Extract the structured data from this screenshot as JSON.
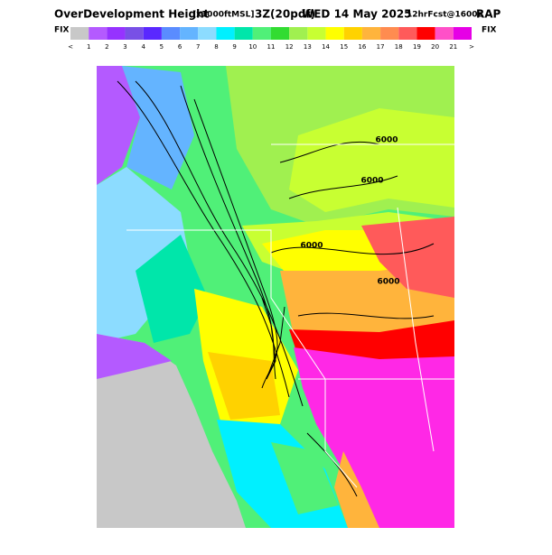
{
  "header": {
    "title": "OverDevelopment Height",
    "units": "[x1000ftMSL]",
    "level": "3Z(20pdf)",
    "date": "WED 14 May 2025",
    "forecast": "12hrFcst@1600z",
    "model": "RAP"
  },
  "colorbar": {
    "left_label": "FIX",
    "right_label": "FIX",
    "labels": [
      "<",
      1,
      2,
      3,
      4,
      5,
      6,
      7,
      8,
      9,
      10,
      11,
      12,
      13,
      14,
      15,
      16,
      17,
      18,
      19,
      20,
      21,
      ">"
    ],
    "colors": [
      "#c8c8c8",
      "#b45aff",
      "#9632ff",
      "#7850e6",
      "#5a28ff",
      "#5a8cff",
      "#64b4ff",
      "#8cdcff",
      "#00f0ff",
      "#00e6aa",
      "#50f078",
      "#32dc32",
      "#a0f050",
      "#c8ff32",
      "#ffff00",
      "#ffd200",
      "#ffb43c",
      "#ff8c50",
      "#ff5a5a",
      "#ff0000",
      "#ff50c8",
      "#e600e6"
    ]
  },
  "contour_labels": [
    "6000",
    "6000",
    "6000",
    "6000"
  ]
}
